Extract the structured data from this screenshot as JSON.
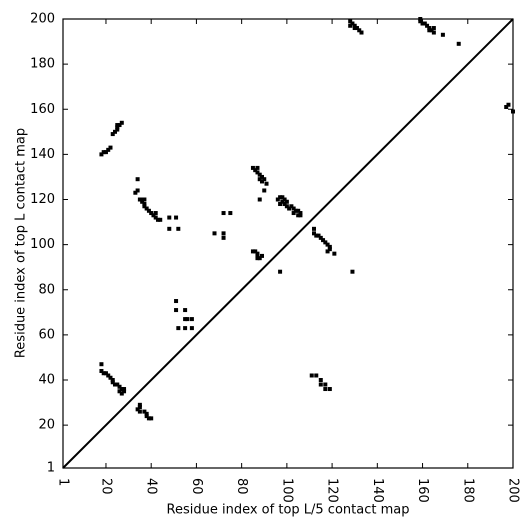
{
  "chart_data": {
    "type": "scatter",
    "xlabel": "Residue index of top L/5 contact map",
    "ylabel": "Residue index of top L contact map",
    "x": [
      18,
      19,
      20,
      21,
      22,
      23,
      24,
      25,
      25,
      26,
      27,
      25,
      34,
      33,
      34,
      35,
      36,
      37,
      37,
      38,
      39,
      40,
      41,
      42,
      43,
      44,
      42,
      36,
      37,
      48,
      51,
      48,
      52,
      68,
      72,
      72,
      72,
      75,
      85,
      86,
      87,
      87,
      88,
      88,
      89,
      89,
      90,
      91,
      88,
      90,
      96,
      97,
      98,
      98,
      99,
      99,
      100,
      100,
      101,
      102,
      103,
      103,
      104,
      105,
      105,
      106,
      106,
      97,
      112,
      112,
      113,
      114,
      115,
      116,
      117,
      118,
      119,
      118,
      119,
      121,
      128,
      129,
      130,
      131,
      132,
      133,
      128,
      130,
      159,
      159,
      160,
      161,
      162,
      163,
      164,
      165,
      165,
      163,
      169,
      176,
      197,
      198,
      200,
      18,
      18,
      19,
      20,
      21,
      22,
      23,
      23,
      24,
      25,
      26,
      27,
      28,
      27,
      28,
      26,
      35,
      35,
      34,
      35,
      37,
      38,
      38,
      39,
      40,
      51,
      51,
      52,
      55,
      55,
      56,
      58,
      58,
      55,
      85,
      86,
      87,
      87,
      88,
      89,
      87,
      97,
      111,
      113,
      115,
      115,
      117,
      117,
      119,
      129
    ],
    "y": [
      140,
      141,
      141,
      142,
      143,
      149,
      150,
      151,
      152,
      153,
      154,
      153,
      129,
      123,
      124,
      120,
      119,
      118,
      117,
      116,
      115,
      114,
      113,
      112,
      111,
      111,
      114,
      120,
      120,
      112,
      112,
      107,
      107,
      105,
      103,
      105,
      114,
      114,
      134,
      133,
      134,
      132,
      131,
      129,
      130,
      128,
      129,
      127,
      120,
      124,
      120,
      121,
      119,
      121,
      120,
      118,
      119,
      117,
      116,
      117,
      116,
      114,
      115,
      113,
      115,
      113,
      114,
      118,
      107,
      105,
      104,
      104,
      103,
      102,
      101,
      100,
      99,
      97,
      98,
      96,
      199,
      198,
      197,
      196,
      195,
      194,
      197,
      196,
      200,
      199,
      198,
      198,
      197,
      196,
      195,
      196,
      194,
      195,
      193,
      189,
      161,
      162,
      159,
      47,
      44,
      43,
      43,
      42,
      41,
      40,
      39,
      38,
      38,
      37,
      36,
      35,
      34,
      36,
      35,
      29,
      28,
      27,
      26,
      26,
      25,
      24,
      23,
      23,
      75,
      71,
      63,
      63,
      67,
      67,
      67,
      63,
      71,
      97,
      97,
      96,
      95,
      94,
      95,
      94,
      88,
      42,
      42,
      40,
      38,
      38,
      36,
      36,
      88
    ],
    "color": "#000000",
    "xlim": [
      1,
      200
    ],
    "ylim": [
      1,
      200
    ],
    "xticks": [
      1,
      20,
      40,
      60,
      80,
      100,
      120,
      140,
      160,
      180,
      200
    ],
    "yticks": [
      1,
      20,
      40,
      60,
      80,
      100,
      120,
      140,
      160,
      180,
      200
    ],
    "diagonal": true
  }
}
